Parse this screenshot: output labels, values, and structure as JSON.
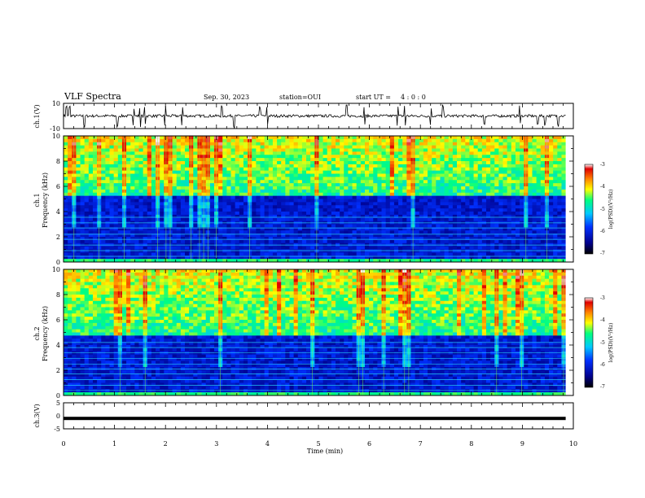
{
  "header": {
    "title": "VLF Spectra",
    "date": "Sep. 30, 2023",
    "station": "station=OUI",
    "start_label": "start  UT =",
    "start_time": "4 : 0  : 0"
  },
  "colors": {
    "background": "#ffffff",
    "waveform": "#000000",
    "colormap": [
      "#000000",
      "#00008b",
      "#0030ff",
      "#00c8ff",
      "#00ff80",
      "#ffff00",
      "#ff8000",
      "#e00000",
      "#ffffff"
    ]
  },
  "chart_data": [
    {
      "type": "line",
      "name": "waveform-ch1",
      "ylabel": "ch.1(V)",
      "ylim": [
        -10,
        10
      ],
      "yticks": [
        "10",
        "-10"
      ],
      "baseline": 0,
      "spike_times_min": [
        0.05,
        0.12,
        0.4,
        1.05,
        1.38,
        1.5,
        1.6,
        2.0,
        2.33,
        3.1,
        3.35,
        3.85,
        4.0,
        5.55,
        5.9,
        6.55,
        6.7,
        7.2,
        7.45,
        8.25,
        8.95,
        9.3,
        9.45,
        9.7
      ]
    },
    {
      "type": "heatmap",
      "name": "spectrogram-ch1",
      "ylabel": "ch.1\nFrequency (kHz)",
      "ylim": [
        0,
        10
      ],
      "yticks": [
        "0",
        "2",
        "4",
        "6",
        "8",
        "10"
      ],
      "colorbar": {
        "label": "log(PSD)(V²/Hz)",
        "range": [
          -7,
          -3
        ],
        "ticks": [
          "-3",
          "-4",
          "-5",
          "-6",
          "-7"
        ]
      },
      "emission_cutoff_khz": 5.3,
      "line_harmonics_khz": [
        0.45,
        0.9,
        1.35,
        1.8,
        2.2,
        2.7,
        3.1,
        3.55
      ]
    },
    {
      "type": "heatmap",
      "name": "spectrogram-ch2",
      "ylabel": "ch.2\nFrequency (kHz)",
      "ylim": [
        0,
        10
      ],
      "yticks": [
        "0",
        "2",
        "4",
        "6",
        "8",
        "10"
      ],
      "colorbar": {
        "label": "log(PSD)(V²/Hz)",
        "range": [
          -7,
          -3
        ],
        "ticks": [
          "-3",
          "-4",
          "-5",
          "-6",
          "-7"
        ]
      },
      "emission_cutoff_khz": 4.8,
      "line_harmonics_khz": [
        0.4,
        0.8,
        1.25,
        1.7,
        2.1,
        2.5,
        2.95,
        3.4,
        3.8,
        4.2
      ]
    },
    {
      "type": "line",
      "name": "waveform-ch3",
      "ylabel": "ch.3(V)",
      "ylim": [
        -5,
        5
      ],
      "yticks": [
        "5",
        "0",
        "-5"
      ],
      "baseline": -1
    }
  ],
  "xaxis": {
    "label": "Time  (min)",
    "range": [
      0,
      10
    ],
    "ticks": [
      "0",
      "1",
      "2",
      "3",
      "4",
      "5",
      "6",
      "7",
      "8",
      "9",
      "10"
    ],
    "data_end_min": 9.85
  }
}
